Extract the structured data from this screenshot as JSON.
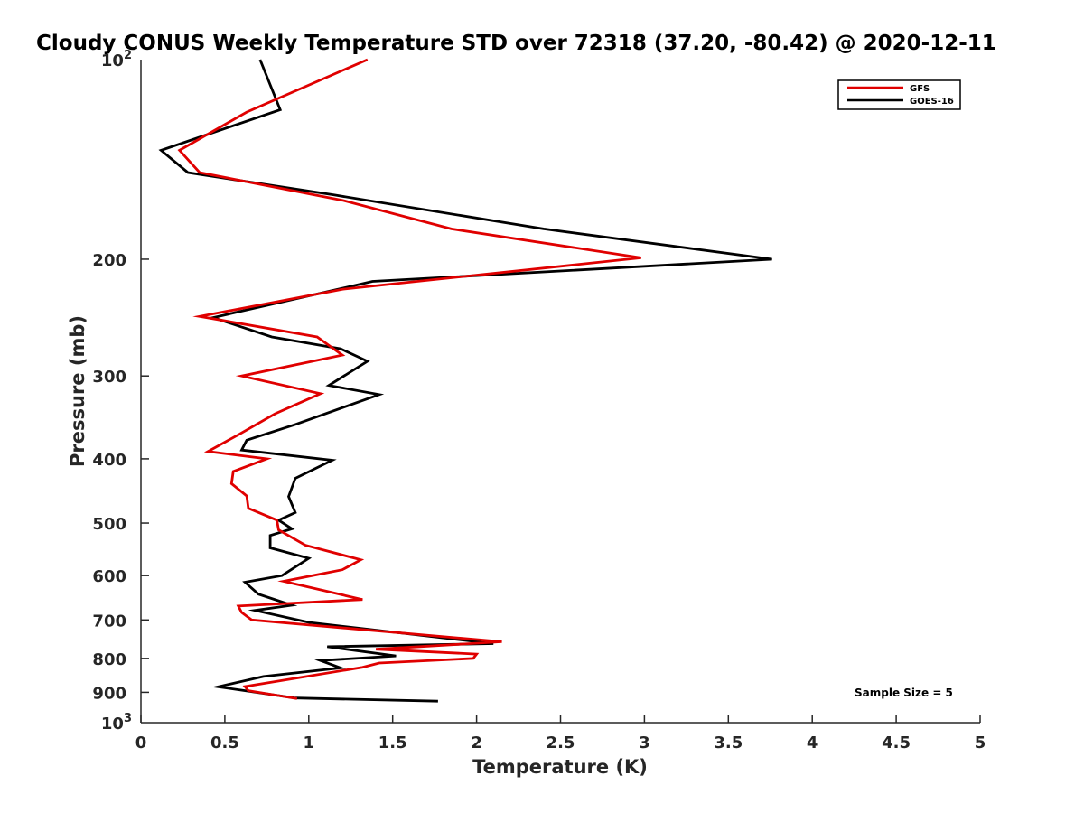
{
  "chart_data": {
    "type": "line",
    "title": "Cloudy CONUS Weekly Temperature STD over 72318 (37.20, -80.42) @ 2020-12-11",
    "xlabel": "Temperature (K)",
    "ylabel": "Pressure (mb)",
    "xlim": [
      0,
      5
    ],
    "ylim": [
      100,
      1000
    ],
    "y_scale": "log",
    "y_direction": "reversed",
    "x_ticks": [
      0,
      0.5,
      1,
      1.5,
      2,
      2.5,
      3,
      3.5,
      4,
      4.5,
      5
    ],
    "x_tick_labels": [
      "0",
      "0.5",
      "1",
      "1.5",
      "2",
      "2.5",
      "3",
      "3.5",
      "4",
      "4.5",
      "5"
    ],
    "y_ticks": [
      200,
      300,
      400,
      500,
      600,
      700,
      800,
      900
    ],
    "y_tick_labels": [
      "200",
      "300",
      "400",
      "500",
      "600",
      "700",
      "800",
      "900"
    ],
    "y_limit_labels": [
      {
        "value": 100,
        "base": "10",
        "exp": "2"
      },
      {
        "value": 1000,
        "base": "10",
        "exp": "3"
      }
    ],
    "legend_position": "top-right",
    "annotation": "Sample Size = 5",
    "series": [
      {
        "name": "GFS",
        "color": "#e00000",
        "x": [
          1.35,
          0.63,
          0.23,
          0.35,
          1.2,
          1.85,
          2.98,
          1.2,
          0.35,
          1.05,
          1.2,
          0.6,
          1.07,
          0.8,
          0.58,
          0.4,
          0.75,
          0.55,
          0.54,
          0.63,
          0.64,
          0.81,
          0.82,
          0.98,
          1.31,
          1.2,
          0.85,
          1.32,
          0.58,
          0.6,
          0.66,
          2.15,
          1.4,
          2.0,
          1.98,
          1.42,
          1.32,
          0.62,
          0.64,
          0.93
        ],
        "y": [
          100,
          120,
          137,
          148,
          163,
          180,
          199,
          222,
          244,
          262,
          279,
          300,
          319,
          342,
          368,
          390,
          400,
          418,
          436,
          455,
          475,
          495,
          512,
          540,
          568,
          588,
          612,
          652,
          667,
          682,
          700,
          755,
          775,
          788,
          800,
          813,
          825,
          882,
          895,
          920
        ]
      },
      {
        "name": "GOES-16",
        "color": "#000000",
        "x": [
          0.71,
          0.83,
          0.12,
          0.28,
          1.15,
          2.4,
          3.76,
          1.38,
          0.43,
          0.78,
          1.19,
          1.35,
          1.12,
          1.42,
          0.92,
          0.63,
          0.6,
          1.14,
          0.92,
          0.88,
          0.92,
          0.82,
          0.9,
          0.77,
          0.77,
          1.0,
          0.84,
          0.62,
          0.7,
          0.9,
          0.68,
          1.0,
          2.1,
          1.11,
          1.52,
          1.07,
          1.19,
          0.73,
          0.46,
          0.92,
          1.77
        ],
        "y": [
          100,
          119,
          137,
          148,
          160,
          180,
          200,
          216,
          245,
          262,
          273,
          285,
          310,
          320,
          355,
          375,
          388,
          402,
          428,
          456,
          482,
          495,
          510,
          522,
          545,
          565,
          600,
          614,
          640,
          665,
          677,
          706,
          760,
          768,
          793,
          806,
          827,
          852,
          883,
          918,
          928
        ]
      }
    ]
  }
}
